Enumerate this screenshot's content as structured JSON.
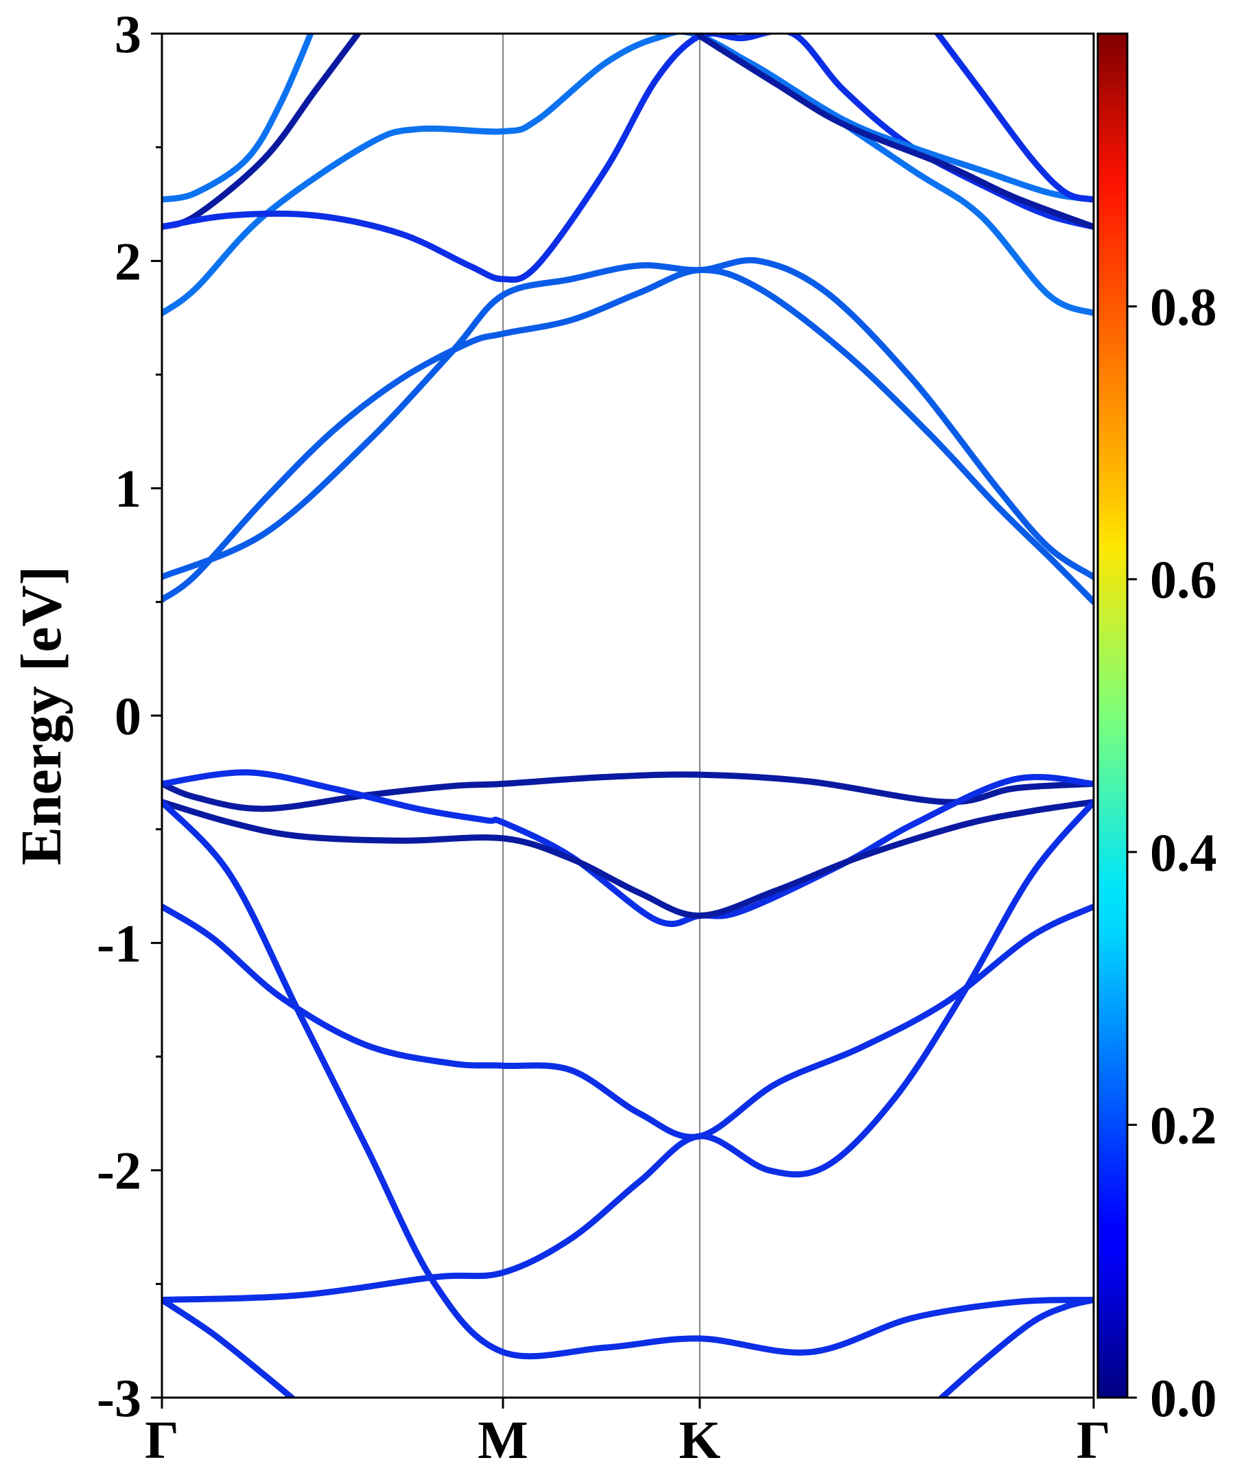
{
  "chart_data": {
    "type": "line",
    "xlabel": "",
    "ylabel": "Energy [eV]",
    "ylim": [
      -3,
      3
    ],
    "yticks": [
      -3,
      -2,
      -1,
      0,
      1,
      2,
      3
    ],
    "ytick_labels": [
      "-3",
      "-2",
      "-1",
      "0",
      "1",
      "2",
      "3"
    ],
    "high_symmetry_points": [
      {
        "label": "Γ",
        "k": 0
      },
      {
        "label": "M",
        "k": 1
      },
      {
        "label": "K",
        "k": 1.577
      },
      {
        "label": "Γ",
        "k": 2.732
      }
    ],
    "grid": false,
    "colorbar": {
      "colormap": "jet",
      "range": [
        0,
        1
      ],
      "ticks": [
        0.0,
        0.2,
        0.4,
        0.6,
        0.8
      ],
      "tick_labels": [
        "0.0",
        "0.2",
        "0.4",
        "0.6",
        "0.8"
      ]
    },
    "series": [
      {
        "color": "#0a5ce8",
        "points": [
          [
            0,
            0.51
          ],
          [
            0.1,
            0.62
          ],
          [
            0.3,
            0.95
          ],
          [
            0.5,
            1.25
          ],
          [
            0.7,
            1.48
          ],
          [
            0.9,
            1.64
          ],
          [
            1.0,
            1.68
          ],
          [
            1.2,
            1.74
          ],
          [
            1.4,
            1.86
          ],
          [
            1.577,
            1.96
          ],
          [
            1.75,
            1.88
          ],
          [
            2.0,
            1.6
          ],
          [
            2.25,
            1.24
          ],
          [
            2.45,
            0.92
          ],
          [
            2.6,
            0.7
          ],
          [
            2.732,
            0.5
          ]
        ]
      },
      {
        "color": "#0a5ce8",
        "points": [
          [
            0,
            0.61
          ],
          [
            0.3,
            0.8
          ],
          [
            0.6,
            1.2
          ],
          [
            0.85,
            1.6
          ],
          [
            1.0,
            1.85
          ],
          [
            1.2,
            1.92
          ],
          [
            1.4,
            1.98
          ],
          [
            1.577,
            1.96
          ],
          [
            1.75,
            2.0
          ],
          [
            1.95,
            1.86
          ],
          [
            2.2,
            1.48
          ],
          [
            2.45,
            1.0
          ],
          [
            2.6,
            0.74
          ],
          [
            2.732,
            0.61
          ]
        ]
      },
      {
        "color": "#0c72f0",
        "points": [
          [
            0,
            1.77
          ],
          [
            0.1,
            1.88
          ],
          [
            0.3,
            2.2
          ],
          [
            0.6,
            2.51
          ],
          [
            0.75,
            2.58
          ],
          [
            1.0,
            2.57
          ],
          [
            1.1,
            2.62
          ],
          [
            1.3,
            2.87
          ],
          [
            1.45,
            2.98
          ],
          [
            1.577,
            2.99
          ],
          [
            1.85,
            2.75
          ],
          [
            2.2,
            2.4
          ],
          [
            2.4,
            2.2
          ],
          [
            2.6,
            1.85
          ],
          [
            2.732,
            1.77
          ]
        ]
      },
      {
        "color": "#0c72f0",
        "points": [
          [
            0,
            2.27
          ],
          [
            0.1,
            2.3
          ],
          [
            0.25,
            2.45
          ],
          [
            0.35,
            2.7
          ],
          [
            0.45,
            3.05
          ]
        ]
      },
      {
        "color": "#0a1aa0",
        "points": [
          [
            0,
            2.15
          ],
          [
            0.1,
            2.2
          ],
          [
            0.3,
            2.45
          ],
          [
            0.45,
            2.75
          ],
          [
            0.6,
            3.05
          ]
        ]
      },
      {
        "color": "#0b2ee6",
        "points": [
          [
            0,
            2.15
          ],
          [
            0.2,
            2.2
          ],
          [
            0.45,
            2.2
          ],
          [
            0.7,
            2.12
          ],
          [
            0.9,
            1.98
          ],
          [
            1.0,
            1.92
          ],
          [
            1.1,
            1.98
          ],
          [
            1.3,
            2.4
          ],
          [
            1.45,
            2.8
          ],
          [
            1.577,
            2.99
          ],
          [
            1.7,
            2.98
          ],
          [
            1.85,
            3.0
          ],
          [
            2.0,
            2.75
          ],
          [
            2.2,
            2.5
          ],
          [
            2.45,
            2.3
          ],
          [
            2.6,
            2.2
          ],
          [
            2.732,
            2.15
          ]
        ]
      },
      {
        "color": "#0c72f0",
        "points": [
          [
            1.577,
            2.99
          ],
          [
            1.75,
            2.85
          ],
          [
            2.0,
            2.62
          ],
          [
            2.2,
            2.5
          ],
          [
            2.4,
            2.4
          ],
          [
            2.6,
            2.3
          ],
          [
            2.732,
            2.27
          ]
        ]
      },
      {
        "color": "#0a1aa0",
        "points": [
          [
            1.577,
            2.99
          ],
          [
            1.8,
            2.78
          ],
          [
            2.0,
            2.6
          ],
          [
            2.3,
            2.42
          ],
          [
            2.5,
            2.28
          ],
          [
            2.732,
            2.15
          ]
        ]
      },
      {
        "color": "#0b2ee6",
        "points": [
          [
            2.25,
            3.05
          ],
          [
            2.4,
            2.75
          ],
          [
            2.55,
            2.45
          ],
          [
            2.65,
            2.3
          ],
          [
            2.732,
            2.27
          ]
        ]
      },
      {
        "color": "#0a1aa0",
        "points": [
          [
            0,
            -0.3
          ],
          [
            0.1,
            -0.36
          ],
          [
            0.3,
            -0.41
          ],
          [
            0.6,
            -0.35
          ],
          [
            0.85,
            -0.31
          ],
          [
            1.0,
            -0.3
          ],
          [
            1.3,
            -0.27
          ],
          [
            1.577,
            -0.26
          ],
          [
            1.9,
            -0.29
          ],
          [
            2.3,
            -0.38
          ],
          [
            2.5,
            -0.32
          ],
          [
            2.732,
            -0.3
          ]
        ]
      },
      {
        "color": "#0b2ee6",
        "points": [
          [
            0,
            -0.3
          ],
          [
            0.25,
            -0.25
          ],
          [
            0.5,
            -0.32
          ],
          [
            0.75,
            -0.41
          ],
          [
            0.95,
            -0.46
          ],
          [
            1.0,
            -0.47
          ],
          [
            1.2,
            -0.62
          ],
          [
            1.45,
            -0.9
          ],
          [
            1.577,
            -0.88
          ],
          [
            1.7,
            -0.86
          ],
          [
            2.0,
            -0.65
          ],
          [
            2.2,
            -0.48
          ],
          [
            2.5,
            -0.28
          ],
          [
            2.732,
            -0.3
          ]
        ]
      },
      {
        "color": "#0a1aa0",
        "points": [
          [
            0,
            -0.38
          ],
          [
            0.2,
            -0.47
          ],
          [
            0.4,
            -0.53
          ],
          [
            0.7,
            -0.55
          ],
          [
            1.0,
            -0.54
          ],
          [
            1.2,
            -0.63
          ],
          [
            1.4,
            -0.78
          ],
          [
            1.577,
            -0.88
          ],
          [
            1.8,
            -0.77
          ],
          [
            2.05,
            -0.62
          ],
          [
            2.35,
            -0.48
          ],
          [
            2.55,
            -0.42
          ],
          [
            2.732,
            -0.38
          ]
        ]
      },
      {
        "color": "#0b2ee6",
        "points": [
          [
            0,
            -0.38
          ],
          [
            0.2,
            -0.7
          ],
          [
            0.4,
            -1.3
          ],
          [
            0.6,
            -1.9
          ],
          [
            0.8,
            -2.5
          ],
          [
            1.0,
            -2.8
          ],
          [
            1.3,
            -2.78
          ],
          [
            1.577,
            -2.74
          ],
          [
            1.9,
            -2.8
          ],
          [
            2.2,
            -2.65
          ],
          [
            2.5,
            -2.58
          ],
          [
            2.732,
            -2.57
          ]
        ]
      },
      {
        "color": "#0b2ee6",
        "points": [
          [
            0,
            -0.84
          ],
          [
            0.15,
            -0.98
          ],
          [
            0.35,
            -1.24
          ],
          [
            0.6,
            -1.45
          ],
          [
            0.85,
            -1.53
          ],
          [
            1.0,
            -1.54
          ],
          [
            1.2,
            -1.56
          ],
          [
            1.4,
            -1.75
          ],
          [
            1.577,
            -1.85
          ],
          [
            1.8,
            -1.62
          ],
          [
            2.05,
            -1.46
          ],
          [
            2.3,
            -1.26
          ],
          [
            2.55,
            -0.97
          ],
          [
            2.732,
            -0.84
          ]
        ]
      },
      {
        "color": "#0b2ee6",
        "points": [
          [
            0,
            -2.57
          ],
          [
            0.4,
            -2.55
          ],
          [
            0.8,
            -2.47
          ],
          [
            1.0,
            -2.45
          ],
          [
            1.2,
            -2.3
          ],
          [
            1.4,
            -2.05
          ],
          [
            1.577,
            -1.85
          ],
          [
            1.78,
            -2.0
          ],
          [
            1.95,
            -1.98
          ],
          [
            2.15,
            -1.68
          ],
          [
            2.35,
            -1.22
          ],
          [
            2.55,
            -0.7
          ],
          [
            2.732,
            -0.38
          ]
        ]
      },
      {
        "color": "#0b2ee6",
        "points": [
          [
            0,
            -2.57
          ],
          [
            0.15,
            -2.72
          ],
          [
            0.3,
            -2.9
          ],
          [
            0.42,
            -3.05
          ]
        ]
      },
      {
        "color": "#0b2ee6",
        "points": [
          [
            2.25,
            -3.05
          ],
          [
            2.4,
            -2.85
          ],
          [
            2.55,
            -2.67
          ],
          [
            2.65,
            -2.6
          ],
          [
            2.732,
            -2.57
          ]
        ]
      }
    ]
  }
}
